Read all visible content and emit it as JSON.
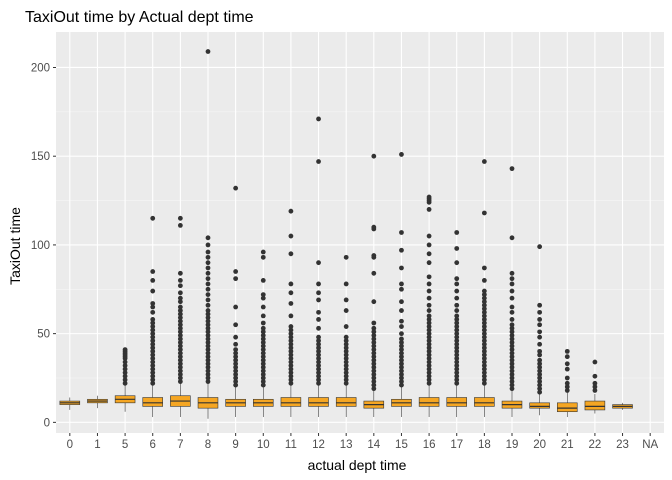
{
  "chart_data": {
    "type": "boxplot",
    "title": "TaxiOut time by Actual dept time",
    "xlabel": "actual dept time",
    "ylabel": "TaxiOut time",
    "ylim": [
      -6,
      220
    ],
    "y_ticks": [
      0,
      50,
      100,
      150,
      200
    ],
    "grid": true,
    "colors": {
      "panel": "#ebebeb",
      "grid_major": "#ffffff",
      "box_fill": "#f5a623",
      "box_line": "#333333",
      "outlier": "#333333"
    },
    "categories": [
      "0",
      "1",
      "5",
      "6",
      "7",
      "8",
      "9",
      "10",
      "11",
      "12",
      "13",
      "14",
      "15",
      "16",
      "17",
      "18",
      "19",
      "20",
      "21",
      "22",
      "23",
      "NA"
    ],
    "boxes": [
      {
        "q1": 10,
        "median": 11,
        "q3": 12,
        "lower": 7,
        "upper": 14,
        "outliers": []
      },
      {
        "q1": 11,
        "median": 12,
        "q3": 13,
        "lower": 8,
        "upper": 15,
        "outliers": []
      },
      {
        "q1": 11,
        "median": 13,
        "q3": 15,
        "lower": 6,
        "upper": 21,
        "outliers": [
          22,
          24,
          26,
          28,
          30,
          32,
          34,
          36,
          37,
          38,
          39,
          40,
          41
        ]
      },
      {
        "q1": 9,
        "median": 11,
        "q3": 14,
        "lower": 3,
        "upper": 21,
        "outliers": [
          22,
          24,
          26,
          28,
          30,
          32,
          34,
          36,
          38,
          40,
          42,
          44,
          46,
          48,
          50,
          52,
          54,
          56,
          58,
          62,
          65,
          67,
          74,
          80,
          85,
          115
        ]
      },
      {
        "q1": 9,
        "median": 12,
        "q3": 15,
        "lower": 3,
        "upper": 22,
        "outliers": [
          23,
          25,
          27,
          29,
          31,
          33,
          35,
          37,
          39,
          41,
          43,
          45,
          47,
          49,
          51,
          53,
          55,
          57,
          59,
          61,
          63,
          65,
          68,
          70,
          73,
          77,
          80,
          84,
          111,
          115
        ]
      },
      {
        "q1": 8,
        "median": 11,
        "q3": 14,
        "lower": 2,
        "upper": 22,
        "outliers": [
          23,
          25,
          27,
          29,
          31,
          33,
          35,
          37,
          39,
          41,
          43,
          45,
          47,
          49,
          51,
          53,
          55,
          57,
          59,
          61,
          63,
          66,
          69,
          72,
          75,
          78,
          81,
          84,
          87,
          90,
          93,
          96,
          100,
          104,
          209
        ]
      },
      {
        "q1": 9,
        "median": 11,
        "q3": 13,
        "lower": 3,
        "upper": 20,
        "outliers": [
          21,
          23,
          25,
          27,
          29,
          31,
          33,
          35,
          37,
          39,
          41,
          44,
          48,
          55,
          65,
          81,
          85,
          132
        ]
      },
      {
        "q1": 9,
        "median": 11,
        "q3": 13,
        "lower": 3,
        "upper": 20,
        "outliers": [
          21,
          23,
          25,
          27,
          29,
          31,
          33,
          35,
          37,
          39,
          41,
          43,
          45,
          47,
          49,
          51,
          53,
          56,
          60,
          65,
          70,
          72,
          80,
          93,
          96
        ]
      },
      {
        "q1": 9,
        "median": 11,
        "q3": 14,
        "lower": 3,
        "upper": 21,
        "outliers": [
          22,
          24,
          26,
          28,
          30,
          32,
          34,
          36,
          38,
          40,
          42,
          44,
          46,
          48,
          50,
          52,
          54,
          60,
          67,
          73,
          78,
          95,
          105,
          119
        ]
      },
      {
        "q1": 9,
        "median": 11,
        "q3": 14,
        "lower": 3,
        "upper": 21,
        "outliers": [
          22,
          24,
          26,
          28,
          30,
          32,
          34,
          36,
          38,
          40,
          42,
          44,
          46,
          48,
          53,
          58,
          62,
          69,
          73,
          78,
          90,
          147,
          171
        ]
      },
      {
        "q1": 9,
        "median": 11,
        "q3": 14,
        "lower": 3,
        "upper": 21,
        "outliers": [
          22,
          24,
          26,
          28,
          30,
          32,
          34,
          36,
          38,
          40,
          42,
          44,
          46,
          48,
          54,
          63,
          69,
          78,
          93
        ]
      },
      {
        "q1": 8,
        "median": 10,
        "q3": 12,
        "lower": 3,
        "upper": 18,
        "outliers": [
          19,
          21,
          23,
          25,
          27,
          29,
          31,
          33,
          35,
          37,
          39,
          41,
          43,
          45,
          47,
          49,
          51,
          53,
          56,
          68,
          84,
          93,
          94,
          109,
          110,
          150
        ]
      },
      {
        "q1": 9,
        "median": 11,
        "q3": 13,
        "lower": 3,
        "upper": 20,
        "outliers": [
          21,
          23,
          25,
          27,
          29,
          31,
          33,
          35,
          37,
          39,
          41,
          43,
          45,
          47,
          50,
          54,
          57,
          63,
          68,
          75,
          78,
          87,
          97,
          107,
          151
        ]
      },
      {
        "q1": 9,
        "median": 11,
        "q3": 14,
        "lower": 3,
        "upper": 21,
        "outliers": [
          22,
          24,
          26,
          28,
          30,
          32,
          34,
          36,
          38,
          40,
          42,
          44,
          46,
          48,
          50,
          52,
          54,
          56,
          58,
          60,
          63,
          66,
          70,
          74,
          78,
          82,
          90,
          95,
          100,
          105,
          120,
          124,
          125,
          126,
          127
        ]
      },
      {
        "q1": 9,
        "median": 11,
        "q3": 14,
        "lower": 3,
        "upper": 21,
        "outliers": [
          22,
          24,
          26,
          28,
          30,
          32,
          34,
          36,
          38,
          40,
          42,
          44,
          46,
          48,
          50,
          52,
          54,
          56,
          58,
          60,
          63,
          66,
          70,
          74,
          78,
          81,
          90,
          98,
          107
        ]
      },
      {
        "q1": 9,
        "median": 11,
        "q3": 14,
        "lower": 3,
        "upper": 21,
        "outliers": [
          22,
          24,
          26,
          28,
          30,
          32,
          34,
          36,
          38,
          40,
          42,
          44,
          46,
          48,
          50,
          52,
          54,
          56,
          58,
          60,
          62,
          64,
          66,
          68,
          70,
          72,
          74,
          80,
          87,
          118,
          147
        ]
      },
      {
        "q1": 8,
        "median": 10,
        "q3": 12,
        "lower": 3,
        "upper": 18,
        "outliers": [
          19,
          21,
          23,
          25,
          27,
          29,
          31,
          33,
          35,
          37,
          39,
          41,
          43,
          45,
          47,
          49,
          51,
          53,
          55,
          58,
          62,
          65,
          70,
          74,
          78,
          81,
          84,
          104,
          143
        ]
      },
      {
        "q1": 8,
        "median": 9,
        "q3": 11,
        "lower": 4,
        "upper": 16,
        "outliers": [
          17,
          19,
          21,
          23,
          25,
          27,
          29,
          31,
          33,
          35,
          38,
          40,
          44,
          48,
          51,
          55,
          58,
          62,
          66,
          99
        ]
      },
      {
        "q1": 6,
        "median": 8,
        "q3": 11,
        "lower": 3,
        "upper": 17,
        "outliers": [
          18,
          20,
          22,
          25,
          30,
          33,
          37,
          40
        ]
      },
      {
        "q1": 7,
        "median": 9,
        "q3": 12,
        "lower": 5,
        "upper": 16,
        "outliers": [
          18,
          20,
          22,
          26,
          34
        ]
      },
      {
        "q1": 8,
        "median": 9,
        "q3": 10,
        "lower": 7,
        "upper": 11,
        "outliers": []
      },
      null
    ]
  }
}
